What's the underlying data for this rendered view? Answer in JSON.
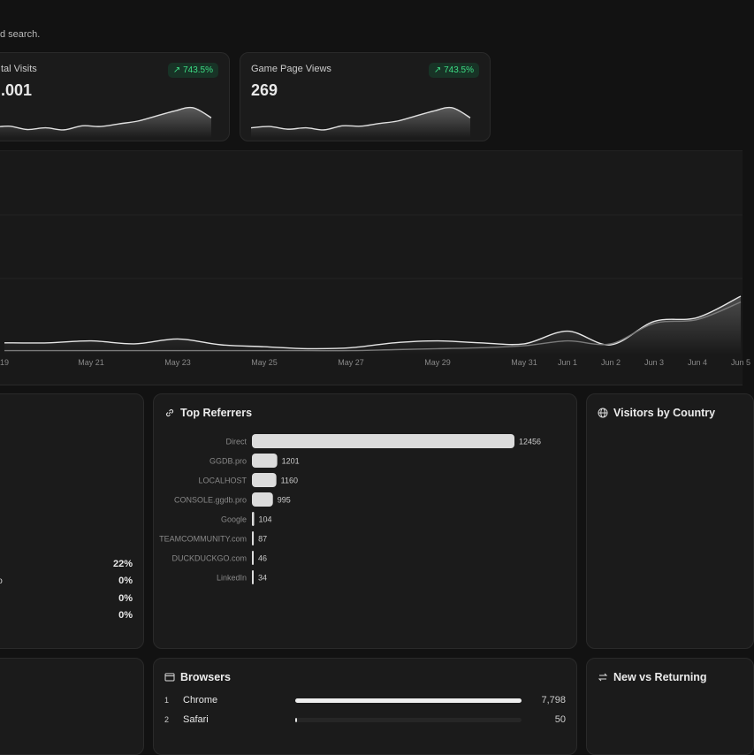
{
  "header": {
    "subtitle": "d search."
  },
  "stat_cards": [
    {
      "label": "tal Visits",
      "value": ".001",
      "change": "743.5%",
      "sparkline": {
        "type": "line",
        "values": [
          3,
          3.5,
          2.5,
          3,
          2.4,
          3.6,
          3.4,
          4.2,
          5,
          6.5,
          8,
          9,
          6
        ],
        "ylim": [
          0,
          10
        ]
      }
    },
    {
      "label": "Game Page Views",
      "value": "269",
      "change": "743.5%",
      "sparkline": {
        "type": "line",
        "values": [
          3,
          3.4,
          2.6,
          3,
          2.4,
          3.6,
          3.5,
          4.3,
          5,
          6.5,
          8,
          9,
          6
        ],
        "ylim": [
          0,
          10
        ]
      }
    }
  ],
  "traffic_chart": {
    "type": "line",
    "categories": [
      "19",
      null,
      "May 21",
      null,
      "May 23",
      null,
      "May 25",
      null,
      "May 27",
      null,
      "May 29",
      null,
      "May 31",
      "Jun 1",
      "Jun 2",
      "Jun 3",
      "Jun 4",
      "Jun 5"
    ],
    "series": [
      {
        "color": "#e6e6e6",
        "values": [
          6,
          6,
          7,
          5.5,
          8,
          5,
          4,
          3,
          3.5,
          6,
          7,
          6,
          5.5,
          12,
          5,
          17,
          19,
          30
        ]
      },
      {
        "color": "#7a7a7a",
        "values": [
          2,
          2,
          2,
          2,
          2,
          2,
          2,
          2,
          2,
          2.5,
          3,
          3.5,
          4.5,
          7,
          5.5,
          16,
          18,
          27
        ]
      }
    ],
    "ylim": [
      0,
      100
    ],
    "grid": true
  },
  "left_card": {
    "rows": [
      {
        "value": "22%"
      },
      {
        "label": "o",
        "value": "0%"
      },
      {
        "value": "0%"
      },
      {
        "value": "0%"
      }
    ]
  },
  "referrers": {
    "type": "bar",
    "title": "Top Referrers",
    "categories": [
      "Direct",
      "GGDB.pro",
      "LOCALHOST",
      "CONSOLE.ggdb.pro",
      "Google",
      "TEAMCOMMUNITY.com",
      "DUCKDUCKGO.com",
      "LinkedIn"
    ],
    "values": [
      12456,
      1201,
      1160,
      995,
      104,
      87,
      46,
      34
    ],
    "color": "#dcdcdc"
  },
  "country": {
    "title": "Visitors by Country"
  },
  "browsers": {
    "type": "bar",
    "title": "Browsers",
    "rows": [
      {
        "rank": "1",
        "name": "Chrome",
        "value": 7798,
        "value_label": "7,798"
      },
      {
        "rank": "2",
        "name": "Safari",
        "value": 50,
        "value_label": "50"
      }
    ]
  },
  "returning": {
    "title": "New vs Returning"
  }
}
